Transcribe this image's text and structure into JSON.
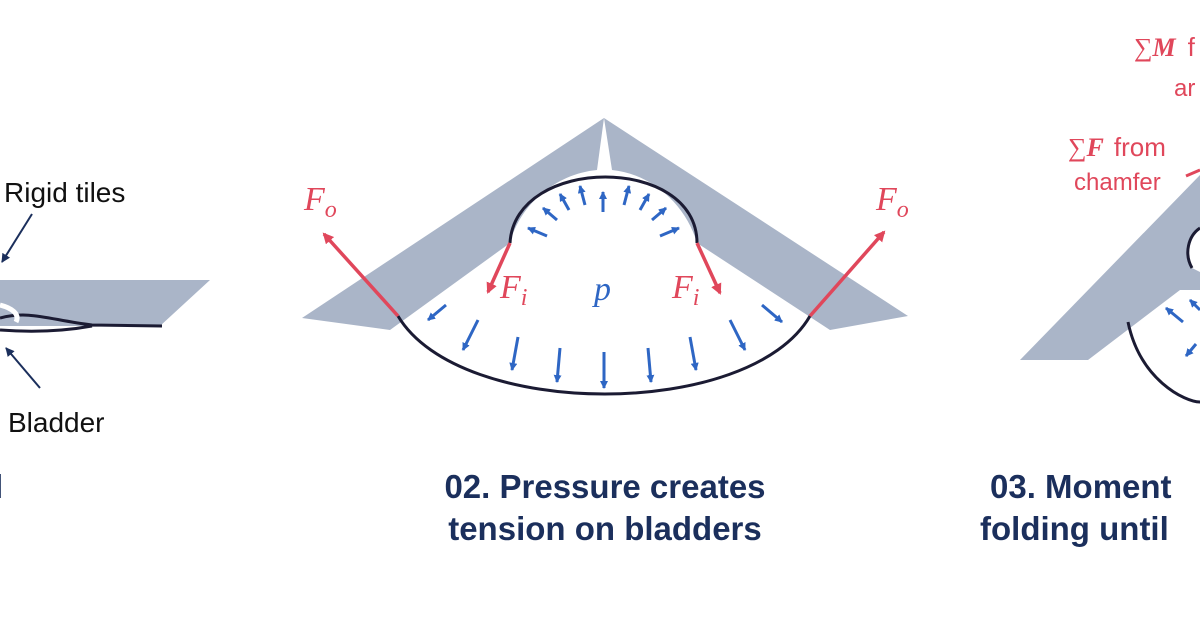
{
  "panel1": {
    "rigid_tiles_label": "Rigid tiles",
    "bladder_label": "Bladder",
    "caption_fragment": "l"
  },
  "panel2": {
    "force_outer": "F",
    "force_outer_sub": "o",
    "force_inner": "F",
    "force_inner_sub": "i",
    "pressure": "p",
    "caption_line1": "02. Pressure creates",
    "caption_line2": "tension on bladders"
  },
  "panel3": {
    "sum_symbol": "∑",
    "moment_symbol": "M",
    "moment_rest": "f",
    "moment_line2": "ar",
    "force_symbol": "F",
    "force_rest": "from",
    "force_line2": "chamfer",
    "caption_line1": "03. Moment",
    "caption_line2": "folding until"
  },
  "colors": {
    "tile": "#aab5c8",
    "bladder": "#1b1b33",
    "pressure_arrow": "#2e66c4",
    "force_arrow": "#e0475b",
    "caption": "#1b2f5c"
  }
}
